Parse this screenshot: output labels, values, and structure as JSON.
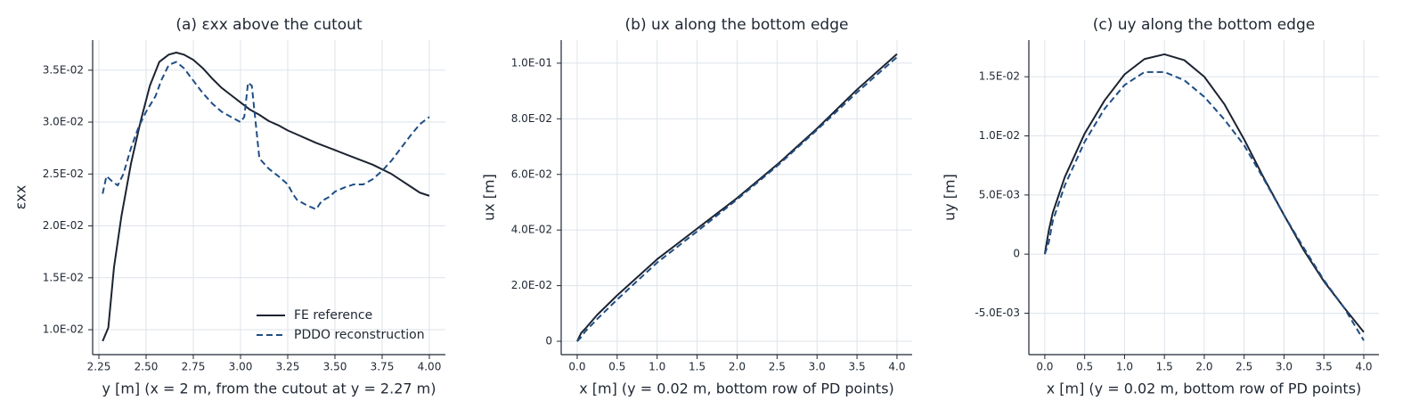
{
  "chart_data": [
    {
      "type": "line",
      "title": "(a) εxx above the cutout",
      "xlabel": "y [m]  (x = 2 m, from the cutout at y = 2.27 m)",
      "ylabel": "εxx",
      "xlim": [
        2.217,
        4.085
      ],
      "ylim": [
        0.0076,
        0.0379
      ],
      "grid": true,
      "legend": "lower right",
      "xticks": [
        {
          "value": 2.25,
          "label": "2.25"
        },
        {
          "value": 2.5,
          "label": "2.50"
        },
        {
          "value": 2.75,
          "label": "2.75"
        },
        {
          "value": 3.0,
          "label": "3.00"
        },
        {
          "value": 3.25,
          "label": "3.25"
        },
        {
          "value": 3.5,
          "label": "3.50"
        },
        {
          "value": 3.75,
          "label": "3.75"
        },
        {
          "value": 4.0,
          "label": "4.00"
        }
      ],
      "yticks": [
        {
          "value": 0.01,
          "label": "1.0E-02"
        },
        {
          "value": 0.015,
          "label": "1.5E-02"
        },
        {
          "value": 0.02,
          "label": "2.0E-02"
        },
        {
          "value": 0.025,
          "label": "2.5E-02"
        },
        {
          "value": 0.03,
          "label": "3.0E-02"
        },
        {
          "value": 0.035,
          "label": "3.5E-02"
        }
      ],
      "series": [
        {
          "name": "FE reference",
          "color": "#1c2330",
          "linestyle": "solid",
          "x": [
            2.27,
            2.3,
            2.33,
            2.37,
            2.42,
            2.47,
            2.52,
            2.57,
            2.62,
            2.66,
            2.7,
            2.75,
            2.8,
            2.85,
            2.9,
            2.95,
            3.0,
            3.05,
            3.1,
            3.15,
            3.2,
            3.25,
            3.3,
            3.35,
            3.4,
            3.5,
            3.6,
            3.7,
            3.8,
            3.85,
            3.9,
            3.95,
            4.0
          ],
          "values": [
            0.0089,
            0.0102,
            0.016,
            0.021,
            0.026,
            0.03,
            0.0335,
            0.0358,
            0.0365,
            0.0367,
            0.0365,
            0.036,
            0.0352,
            0.0342,
            0.0333,
            0.0326,
            0.0319,
            0.0312,
            0.0307,
            0.0301,
            0.0297,
            0.0292,
            0.0288,
            0.0284,
            0.028,
            0.0273,
            0.0266,
            0.0259,
            0.025,
            0.0244,
            0.0238,
            0.0232,
            0.0229
          ]
        },
        {
          "name": "PDDO reconstruction",
          "color": "#1f4e85",
          "linestyle": "dashed",
          "x": [
            2.27,
            2.29,
            2.32,
            2.35,
            2.38,
            2.42,
            2.46,
            2.5,
            2.55,
            2.58,
            2.62,
            2.66,
            2.7,
            2.75,
            2.8,
            2.85,
            2.9,
            2.95,
            3.0,
            3.02,
            3.04,
            3.06,
            3.08,
            3.1,
            3.15,
            3.2,
            3.25,
            3.28,
            3.3,
            3.35,
            3.4,
            3.43,
            3.47,
            3.5,
            3.55,
            3.6,
            3.65,
            3.7,
            3.75,
            3.8,
            3.85,
            3.9,
            3.95,
            4.0
          ],
          "values": [
            0.0231,
            0.0248,
            0.0243,
            0.0239,
            0.025,
            0.0275,
            0.0295,
            0.031,
            0.0325,
            0.034,
            0.0355,
            0.0358,
            0.0352,
            0.034,
            0.0328,
            0.0318,
            0.031,
            0.0305,
            0.03,
            0.0305,
            0.0338,
            0.0335,
            0.03,
            0.0265,
            0.0255,
            0.0248,
            0.024,
            0.023,
            0.0225,
            0.022,
            0.0216,
            0.0224,
            0.0228,
            0.0233,
            0.0237,
            0.024,
            0.024,
            0.0245,
            0.0253,
            0.0263,
            0.0275,
            0.0287,
            0.0298,
            0.0305
          ]
        }
      ]
    },
    {
      "type": "line",
      "title": "(b) ux along the bottom edge",
      "xlabel": "x [m]  (y = 0.02 m, bottom row of PD points)",
      "ylabel": "ux [m]",
      "xlim": [
        -0.2,
        4.19
      ],
      "ylim": [
        -0.0048,
        0.1083
      ],
      "grid": true,
      "xticks": [
        {
          "value": 0.0,
          "label": "0.0"
        },
        0.5,
        {
          "value": 1.0,
          "label": "1.0"
        },
        1.5,
        {
          "value": 2.0,
          "label": "2.0"
        },
        2.5,
        {
          "value": 3.0,
          "label": "3.0"
        },
        3.5,
        {
          "value": 4.0,
          "label": "4.0"
        }
      ],
      "yticks": [
        0,
        {
          "value": 0.02,
          "label": "2.0E-02"
        },
        {
          "value": 0.04,
          "label": "4.0E-02"
        },
        {
          "value": 0.06,
          "label": "6.0E-02"
        },
        {
          "value": 0.08,
          "label": "8.0E-02"
        },
        {
          "value": 0.1,
          "label": "1.0E-01"
        }
      ],
      "x": [
        0,
        0.05,
        0.1,
        0.25,
        0.5,
        1.0,
        1.5,
        2.0,
        2.5,
        3.0,
        3.5,
        4.0
      ],
      "series": [
        {
          "color": "#1c2330",
          "linestyle": "solid",
          "values": [
            0,
            0.003,
            0.0045,
            0.0095,
            0.0165,
            0.0295,
            0.0405,
            0.0515,
            0.0635,
            0.0765,
            0.0905,
            0.1033
          ]
        },
        {
          "color": "#1f4e85",
          "linestyle": "dashed",
          "values": [
            0,
            0.0015,
            0.0035,
            0.008,
            0.015,
            0.0283,
            0.0395,
            0.051,
            0.063,
            0.076,
            0.0895,
            0.1022
          ]
        }
      ]
    },
    {
      "type": "line",
      "title": "(c) uy along the bottom edge",
      "xlabel": "x [m]  (y = 0.02 m, bottom row of PD points)",
      "ylabel": "uy [m]",
      "xlim": [
        -0.2,
        4.19
      ],
      "ylim": [
        -0.0085,
        0.0181
      ],
      "grid": true,
      "xticks": [
        {
          "value": 0.0,
          "label": "0.0"
        },
        0.5,
        {
          "value": 1.0,
          "label": "1.0"
        },
        1.5,
        {
          "value": 2.0,
          "label": "2.0"
        },
        2.5,
        {
          "value": 3.0,
          "label": "3.0"
        },
        3.5,
        {
          "value": 4.0,
          "label": "4.0"
        }
      ],
      "yticks": [
        {
          "value": -0.005,
          "label": "-5.0E-03"
        },
        0,
        {
          "value": 0.005,
          "label": "5.0E-03"
        },
        {
          "value": 0.01,
          "label": "1.0E-02"
        },
        {
          "value": 0.015,
          "label": "1.5E-02"
        }
      ],
      "x": [
        0,
        0.05,
        0.1,
        0.25,
        0.5,
        0.75,
        1.0,
        1.25,
        1.5,
        1.75,
        2.0,
        2.25,
        2.5,
        2.75,
        3.0,
        3.25,
        3.5,
        3.75,
        4.0
      ],
      "series": [
        {
          "color": "#1c2330",
          "linestyle": "solid",
          "values": [
            0,
            0.002,
            0.0035,
            0.0065,
            0.0102,
            0.013,
            0.0152,
            0.0165,
            0.0169,
            0.0164,
            0.015,
            0.0127,
            0.0097,
            0.0064,
            0.0033,
            0.0003,
            -0.0023,
            -0.0045,
            -0.0066
          ]
        },
        {
          "color": "#1f4e85",
          "linestyle": "dashed",
          "values": [
            0,
            0.001,
            0.0028,
            0.0058,
            0.0095,
            0.0123,
            0.0143,
            0.0154,
            0.0154,
            0.0147,
            0.0133,
            0.0114,
            0.0092,
            0.0063,
            0.0033,
            0.0005,
            -0.0022,
            -0.0045,
            -0.0073
          ]
        }
      ]
    }
  ]
}
